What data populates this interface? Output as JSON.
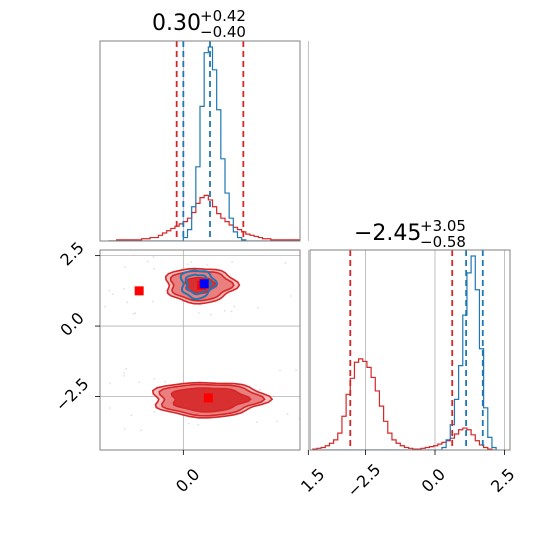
{
  "colors": {
    "red": "#d62728",
    "blue": "#1f77b4",
    "red_light": "#f4b6b6",
    "red_mid": "#e87878",
    "marker_blue": "#0000ff",
    "marker_red": "#ff0000"
  },
  "chart_data": {
    "type": "corner",
    "parameters": [
      "p0",
      "p1"
    ],
    "grid": true,
    "titles": [
      {
        "value": "0.30",
        "plus": "+0.42",
        "minus": "−0.40"
      },
      {
        "value": "−2.45",
        "plus": "+3.05",
        "minus": "−0.58"
      }
    ],
    "axes": {
      "p0": {
        "range": [
          -1.0,
          1.4
        ],
        "ticks": [
          0.0,
          1.5
        ],
        "tick_labels": [
          "0.0",
          "1.5"
        ]
      },
      "p1": {
        "range": [
          -4.4,
          2.7
        ],
        "ticks": [
          -2.5,
          0.0,
          2.5
        ],
        "tick_labels": [
          "−2.5",
          "0.0",
          "2.5"
        ]
      },
      "p1_diag": {
        "range": [
          -4.5,
          2.7
        ],
        "ticks": [
          -2.5,
          0.0,
          2.5
        ],
        "tick_labels": [
          "−2.5",
          "0.0",
          "2.5"
        ]
      }
    },
    "hist_p0": {
      "bin_edges_start": -0.9,
      "bin_width": 0.05,
      "series": [
        {
          "color": "red",
          "values": [
            0,
            0,
            1,
            1,
            1,
            1,
            1,
            1,
            2,
            2,
            3,
            3,
            5,
            7,
            9,
            11,
            13,
            15,
            17,
            20,
            25,
            33,
            38,
            40,
            36,
            30,
            24,
            20,
            17,
            14,
            12,
            10,
            8,
            6,
            5,
            4,
            3,
            2,
            2,
            1,
            1,
            1,
            1,
            1,
            1,
            1,
            0,
            0
          ]
        },
        {
          "color": "blue",
          "values": [
            0,
            0,
            0,
            0,
            0,
            0,
            0,
            0,
            0,
            0,
            0,
            0,
            0,
            0,
            0,
            0,
            0,
            0,
            3,
            10,
            30,
            65,
            118,
            165,
            170,
            150,
            115,
            72,
            42,
            20,
            8,
            3,
            1,
            0,
            0,
            0,
            0,
            0,
            0,
            0,
            0,
            0,
            0,
            0,
            0,
            0,
            0,
            0
          ]
        }
      ],
      "quantiles": {
        "red": [
          -0.08,
          0.72
        ],
        "blue": [
          0.0,
          0.32
        ]
      }
    },
    "hist_p1": {
      "bin_edges_start": -4.4,
      "bin_width": 0.15,
      "series": [
        {
          "color": "red",
          "values": [
            1,
            2,
            3,
            5,
            8,
            12,
            20,
            40,
            66,
            85,
            104,
            108,
            105,
            98,
            86,
            70,
            52,
            34,
            20,
            12,
            8,
            5,
            3,
            2,
            1,
            1,
            2,
            3,
            4,
            5,
            7,
            9,
            11,
            14,
            19,
            24,
            26,
            24,
            18,
            11,
            6,
            3,
            1,
            0
          ]
        },
        {
          "color": "blue",
          "values": [
            0,
            0,
            0,
            0,
            0,
            0,
            0,
            0,
            0,
            0,
            0,
            0,
            0,
            0,
            0,
            0,
            0,
            0,
            0,
            0,
            0,
            0,
            0,
            0,
            0,
            0,
            0,
            0,
            0,
            0,
            0,
            3,
            12,
            30,
            60,
            100,
            160,
            210,
            230,
            190,
            120,
            50,
            15,
            3
          ]
        }
      ],
      "quantiles": {
        "red": [
          -3.05,
          0.62
        ],
        "blue": [
          1.12,
          1.72
        ]
      }
    },
    "contours_2d": {
      "red_modes": [
        {
          "cx": 0.3,
          "cy": -2.6,
          "levels": [
            [
              0.68,
              0.62
            ],
            [
              0.6,
              0.55
            ],
            [
              0.45,
              0.42
            ]
          ]
        },
        {
          "cx": 0.2,
          "cy": 1.45,
          "levels": [
            [
              0.42,
              0.62
            ],
            [
              0.36,
              0.52
            ],
            [
              0.18,
              0.28
            ]
          ]
        }
      ],
      "blue_mode": {
        "cx": 0.17,
        "cy": 1.5,
        "levels": [
          [
            0.2,
            0.5
          ],
          [
            0.14,
            0.34
          ]
        ]
      },
      "markers": [
        {
          "x": -0.53,
          "y": 1.25,
          "color": "marker_red"
        },
        {
          "x": 0.22,
          "y": 1.45,
          "color": "marker_red"
        },
        {
          "x": 0.25,
          "y": 1.5,
          "color": "marker_blue"
        },
        {
          "x": 0.3,
          "y": -2.55,
          "color": "marker_red"
        }
      ]
    }
  }
}
